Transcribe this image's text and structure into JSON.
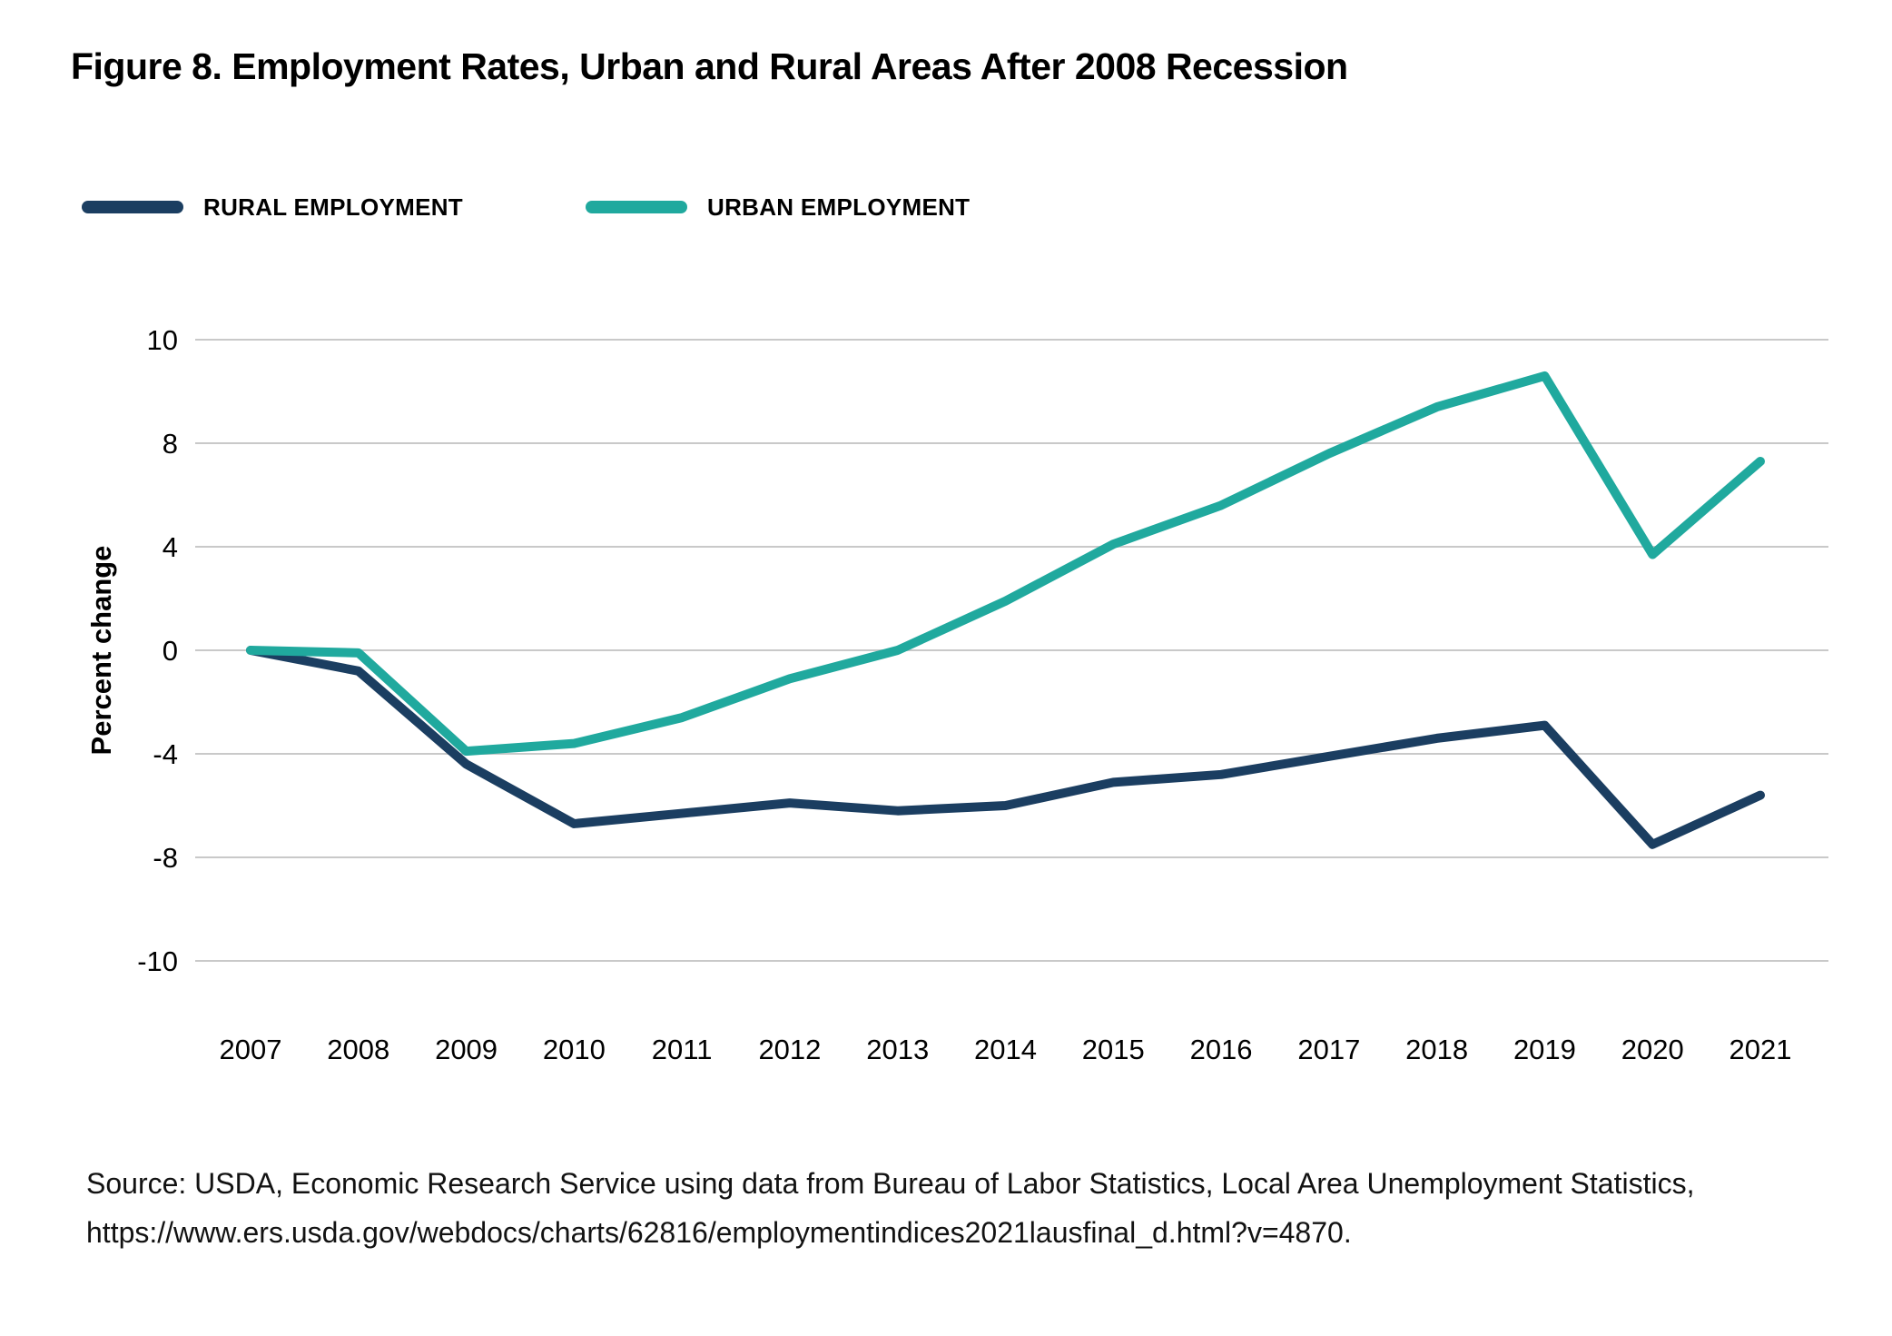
{
  "title": "Figure 8. Employment Rates, Urban and Rural Areas After 2008 Recession",
  "legend": [
    {
      "label": "RURAL EMPLOYMENT",
      "color": "#1b3e61"
    },
    {
      "label": "URBAN EMPLOYMENT",
      "color": "#20a99e"
    }
  ],
  "colors": {
    "rural": "#1b3e61",
    "urban": "#20a99e",
    "gridline": "#c9c9c9",
    "text": "#000000"
  },
  "chart_data": {
    "type": "line",
    "title": "Figure 8. Employment Rates, Urban and Rural Areas After 2008 Recession",
    "xlabel": "",
    "ylabel": "Percent change",
    "x": [
      2007,
      2008,
      2009,
      2010,
      2011,
      2012,
      2013,
      2014,
      2015,
      2016,
      2017,
      2018,
      2019,
      2020,
      2021
    ],
    "series": [
      {
        "name": "Rural employment",
        "color": "#1b3e61",
        "values": [
          0,
          -0.8,
          -4.4,
          -6.7,
          -6.3,
          -5.9,
          -6.2,
          -6.0,
          -5.1,
          -4.8,
          -4.1,
          -3.4,
          -2.9,
          -7.5,
          -5.6
        ]
      },
      {
        "name": "Urban employment",
        "color": "#20a99e",
        "values": [
          0,
          -0.1,
          -3.9,
          -3.6,
          -2.6,
          -1.1,
          0.0,
          1.9,
          4.1,
          5.6,
          7.6,
          8.7,
          9.3,
          3.7,
          7.3
        ]
      }
    ],
    "ylim": [
      -10,
      10
    ],
    "y_ticks": [
      10,
      8,
      4,
      0,
      -4,
      -8,
      -10
    ],
    "y_ticks_evenly_spaced": true,
    "grid": true,
    "legend_position": "top-left"
  },
  "source": {
    "line1": "Source: USDA, Economic Research Service using data from Bureau of Labor Statistics, Local Area Unemployment Statistics,",
    "line2": "https://www.ers.usda.gov/webdocs/charts/62816/employmentindices2021lausfinal_d.html?v=4870."
  }
}
